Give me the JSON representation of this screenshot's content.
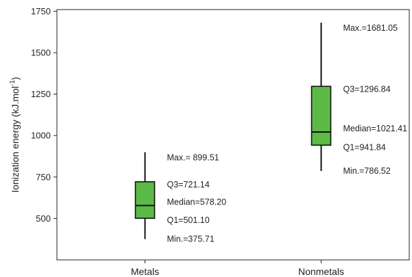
{
  "chart_data": {
    "type": "box",
    "ylabel": "Ionization energy (kJ.mol",
    "ylabel_sup": "-1",
    "ylabel_close": ")",
    "ylim": [
      250,
      1760
    ],
    "yticks": [
      500,
      750,
      1000,
      1250,
      1500,
      1750
    ],
    "grid": false,
    "box_color": "#5cba47",
    "line_color": "#111111",
    "categories": [
      "Metals",
      "Nonmetals"
    ],
    "boxes": [
      {
        "category": "Metals",
        "min": 375.71,
        "q1": 501.1,
        "median": 578.2,
        "q3": 721.14,
        "max": 899.51,
        "labels": {
          "max": "Max.= 899.51",
          "q3": "Q3=721.14",
          "median": "Median=578.20",
          "q1": "Q1=501.10",
          "min": "Min.=375.71"
        }
      },
      {
        "category": "Nonmetals",
        "min": 786.52,
        "q1": 941.84,
        "median": 1021.41,
        "q3": 1296.84,
        "max": 1681.05,
        "labels": {
          "max": "Max.=1681.05",
          "q3": "Q3=1296.84",
          "median": "Median=1021.41",
          "q1": "Q1=941.84",
          "min": "Min.=786.52"
        }
      }
    ]
  }
}
